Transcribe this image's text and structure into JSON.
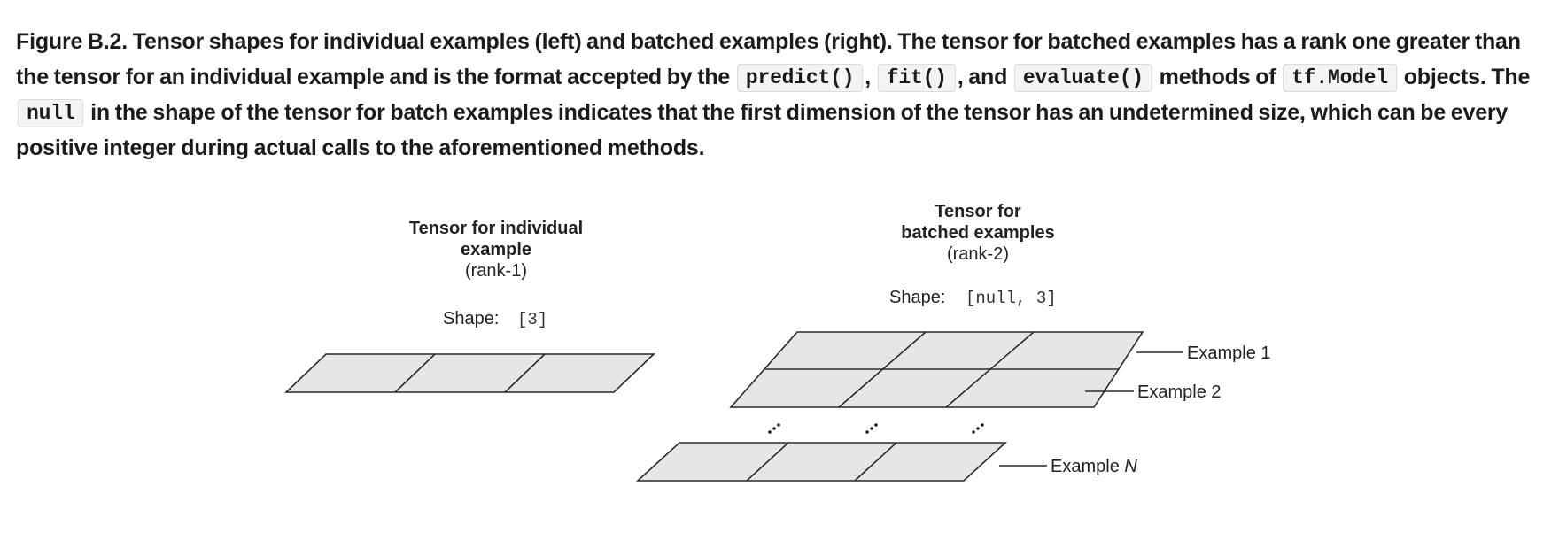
{
  "caption": {
    "figure_label": "Figure B.2.",
    "text_1": " Tensor shapes for individual examples (left) and batched examples (right). The tensor for batched examples has a rank one greater than the tensor for an individual example and is the format accepted by the ",
    "code_predict": "predict()",
    "sep_1": ", ",
    "code_fit": "fit()",
    "sep_2": ", and ",
    "code_evaluate": "evaluate()",
    "text_2": " methods of ",
    "code_model": "tf.Model",
    "text_3": " objects. The ",
    "code_null": "null",
    "text_4": " in the shape of the tensor for batch examples indicates that the first dimension of the tensor has an undetermined size, which can be every positive integer during actual calls to the aforementioned methods."
  },
  "diagram": {
    "left": {
      "title_line1": "Tensor for individual",
      "title_line2": "example",
      "rank": "(rank-1)",
      "shape_label": "Shape:",
      "shape_value": "[3]"
    },
    "right": {
      "title_line1": "Tensor for",
      "title_line2": "batched examples",
      "rank": "(rank-2)",
      "shape_label": "Shape:",
      "shape_value": "[null, 3]",
      "example_1": "Example 1",
      "example_2": "Example 2",
      "example_n_prefix": "Example ",
      "example_n_var": "N",
      "ellipsis": "..."
    }
  },
  "colors": {
    "cell_fill": "#e6e6e6",
    "outline": "#2a2a2a",
    "code_background": "#f4f4f4"
  }
}
